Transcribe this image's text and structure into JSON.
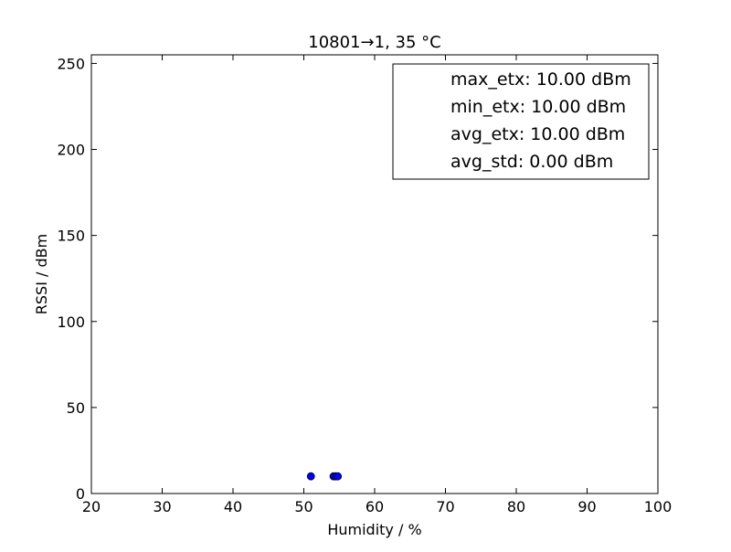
{
  "chart_data": {
    "type": "scatter",
    "title": "10801→1, 35 °C",
    "xlabel": "Humidity / %",
    "ylabel": "RSSI / dBm",
    "xlim": [
      20,
      100
    ],
    "ylim": [
      0,
      255
    ],
    "x_ticks": [
      "20",
      "30",
      "40",
      "50",
      "60",
      "70",
      "80",
      "90",
      "100"
    ],
    "y_ticks": [
      "0",
      "50",
      "100",
      "150",
      "200",
      "250"
    ],
    "grid": false,
    "legend_position": "top-right",
    "legend": [
      "max_etx: 10.00 dBm",
      "min_etx: 10.00 dBm",
      "avg_etx: 10.00 dBm",
      "avg_std: 0.00 dBm"
    ],
    "series": [
      {
        "color": "#0000ff",
        "points": [
          {
            "x": 51.0,
            "y": 10
          },
          {
            "x": 54.2,
            "y": 10
          },
          {
            "x": 54.5,
            "y": 10
          },
          {
            "x": 54.8,
            "y": 10
          }
        ]
      }
    ]
  }
}
